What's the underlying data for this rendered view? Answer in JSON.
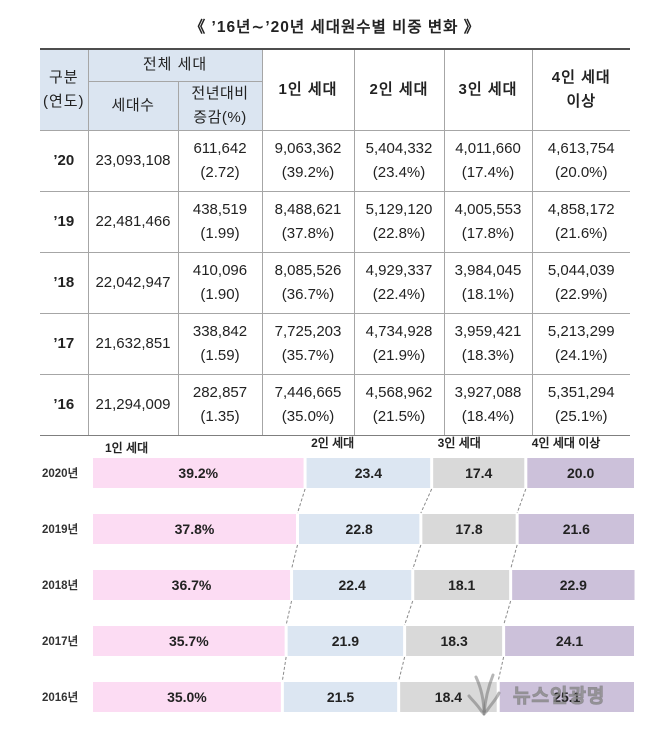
{
  "title": "《 ’16년∼’20년 세대원수별 비중 변화 》",
  "chart_data": [
    {
      "type": "table",
      "header": {
        "category": "구분",
        "category_unit": "(연도)",
        "total": "전체 세대",
        "households": "세대수",
        "change_line1": "전년대비",
        "change_line2": "증감(%)",
        "one_person": "1인 세대",
        "two_person": "2인 세대",
        "three_person": "3인 세대",
        "four_plus_line1": "4인 세대",
        "four_plus_line2": "이상"
      },
      "rows": [
        {
          "year": "’20",
          "households": "23,093,108",
          "change": "611,642",
          "change_rate": "(2.72)",
          "one": "9,063,362",
          "one_share": "(39.2%)",
          "two": "5,404,332",
          "two_share": "(23.4%)",
          "three": "4,011,660",
          "three_share": "(17.4%)",
          "four": "4,613,754",
          "four_share": "(20.0%)"
        },
        {
          "year": "’19",
          "households": "22,481,466",
          "change": "438,519",
          "change_rate": "(1.99)",
          "one": "8,488,621",
          "one_share": "(37.8%)",
          "two": "5,129,120",
          "two_share": "(22.8%)",
          "three": "4,005,553",
          "three_share": "(17.8%)",
          "four": "4,858,172",
          "four_share": "(21.6%)"
        },
        {
          "year": "’18",
          "households": "22,042,947",
          "change": "410,096",
          "change_rate": "(1.90)",
          "one": "8,085,526",
          "one_share": "(36.7%)",
          "two": "4,929,337",
          "two_share": "(22.4%)",
          "three": "3,984,045",
          "three_share": "(18.1%)",
          "four": "5,044,039",
          "four_share": "(22.9%)"
        },
        {
          "year": "’17",
          "households": "21,632,851",
          "change": "338,842",
          "change_rate": "(1.59)",
          "one": "7,725,203",
          "one_share": "(35.7%)",
          "two": "4,734,928",
          "two_share": "(21.9%)",
          "three": "3,959,421",
          "three_share": "(18.3%)",
          "four": "5,213,299",
          "four_share": "(24.1%)"
        },
        {
          "year": "’16",
          "households": "21,294,009",
          "change": "282,857",
          "change_rate": "(1.35)",
          "one": "7,446,665",
          "one_share": "(35.0%)",
          "two": "4,568,962",
          "two_share": "(21.5%)",
          "three": "3,927,088",
          "three_share": "(18.4%)",
          "four": "5,351,294",
          "four_share": "(25.1%)"
        }
      ]
    },
    {
      "type": "bar",
      "orientation": "horizontal",
      "stacked": true,
      "categories": [
        "2020년",
        "2019년",
        "2018년",
        "2017년",
        "2016년"
      ],
      "series": [
        {
          "name": "1인 세대",
          "values": [
            39.2,
            37.8,
            36.7,
            35.7,
            35.0
          ],
          "labels": [
            "39.2%",
            "37.8%",
            "36.7%",
            "35.7%",
            "35.0%"
          ],
          "color": "#fcdcf3"
        },
        {
          "name": "2인 세대",
          "values": [
            23.4,
            22.8,
            22.4,
            21.9,
            21.5
          ],
          "labels": [
            "23.4",
            "22.8",
            "22.4",
            "21.9",
            "21.5"
          ],
          "color": "#dce6f2"
        },
        {
          "name": "3인 세대",
          "values": [
            17.4,
            17.8,
            18.1,
            18.3,
            18.4
          ],
          "labels": [
            "17.4",
            "17.8",
            "18.1",
            "18.3",
            "18.4"
          ],
          "color": "#d9d9d9"
        },
        {
          "name": "4인 세대 이상",
          "values": [
            20.0,
            21.6,
            22.9,
            24.1,
            25.1
          ],
          "labels": [
            "20.0",
            "21.6",
            "22.9",
            "24.1",
            "25.1"
          ],
          "color": "#ccc1da"
        }
      ],
      "xlim": [
        0,
        100
      ],
      "grid": false,
      "legend": "top"
    }
  ],
  "watermark": "뉴스인광명"
}
